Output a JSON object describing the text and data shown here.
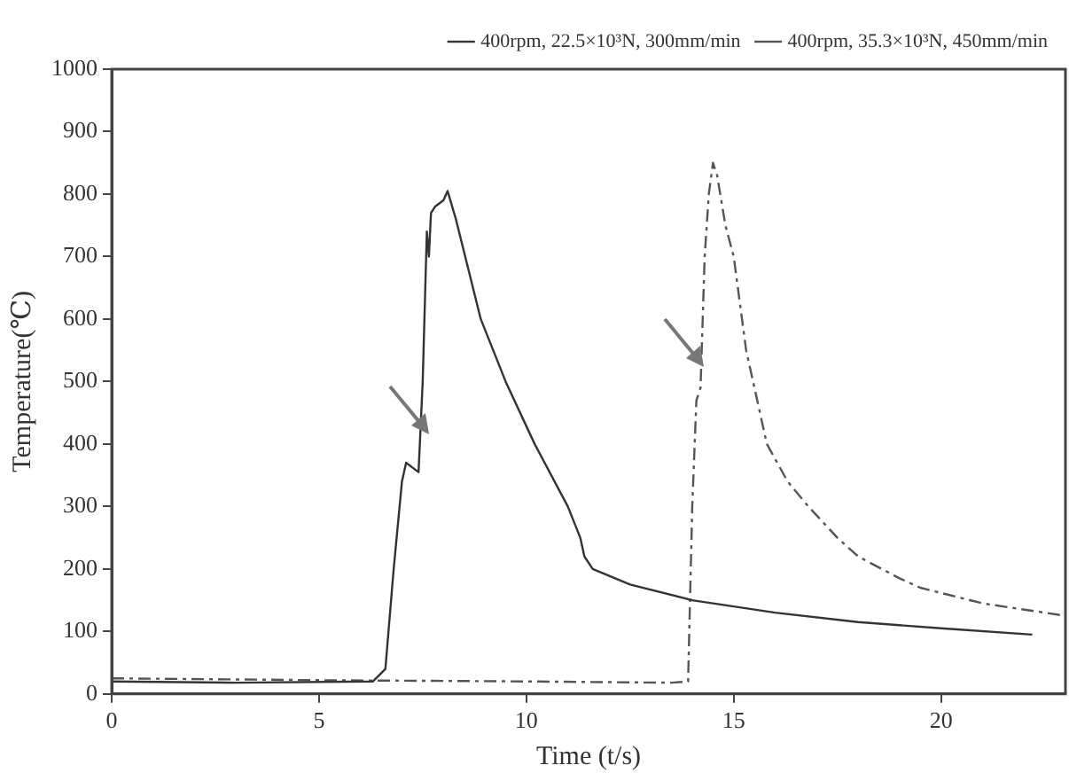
{
  "chart_data": {
    "type": "line",
    "xlabel": "Time (t/s)",
    "ylabel": "Temperature(℃)",
    "xlim": [
      0,
      23
    ],
    "xticks": [
      0,
      5,
      10,
      15,
      20
    ],
    "ylim": [
      0,
      1000
    ],
    "yticks": [
      0,
      100,
      200,
      300,
      400,
      500,
      600,
      700,
      800,
      900,
      1000
    ],
    "grid": false,
    "legend": "top right",
    "marker": "none",
    "series": [
      {
        "name": "400rpm, 22.5×10³N, 300mm/min",
        "color": "#333333",
        "line_style": "solid",
        "x": [
          0,
          3,
          6.3,
          6.6,
          6.8,
          7.0,
          7.1,
          7.4,
          7.5,
          7.6,
          7.65,
          7.7,
          7.8,
          8.0,
          8.1,
          8.3,
          8.6,
          8.9,
          9.5,
          10.2,
          11.0,
          11.3,
          11.4,
          11.6,
          12.5,
          14,
          16,
          18,
          20,
          22.2
        ],
        "values": [
          20,
          18,
          20,
          40,
          200,
          340,
          370,
          355,
          500,
          740,
          700,
          770,
          780,
          790,
          805,
          760,
          680,
          600,
          500,
          400,
          300,
          250,
          220,
          200,
          175,
          150,
          130,
          115,
          105,
          95
        ]
      },
      {
        "name": "400rpm, 35.3×10³N, 450mm/min",
        "color": "#555555",
        "line_style": "dashdot",
        "x": [
          0,
          5,
          10,
          13.5,
          13.9,
          14.0,
          14.1,
          14.2,
          14.3,
          14.4,
          14.5,
          14.6,
          14.8,
          15.0,
          15.3,
          15.8,
          16.3,
          16.8,
          17.5,
          18,
          19,
          19.5,
          21,
          23
        ],
        "values": [
          25,
          22,
          20,
          18,
          20,
          300,
          470,
          490,
          700,
          800,
          850,
          830,
          750,
          700,
          550,
          400,
          340,
          300,
          250,
          220,
          185,
          170,
          145,
          125
        ]
      }
    ]
  }
}
